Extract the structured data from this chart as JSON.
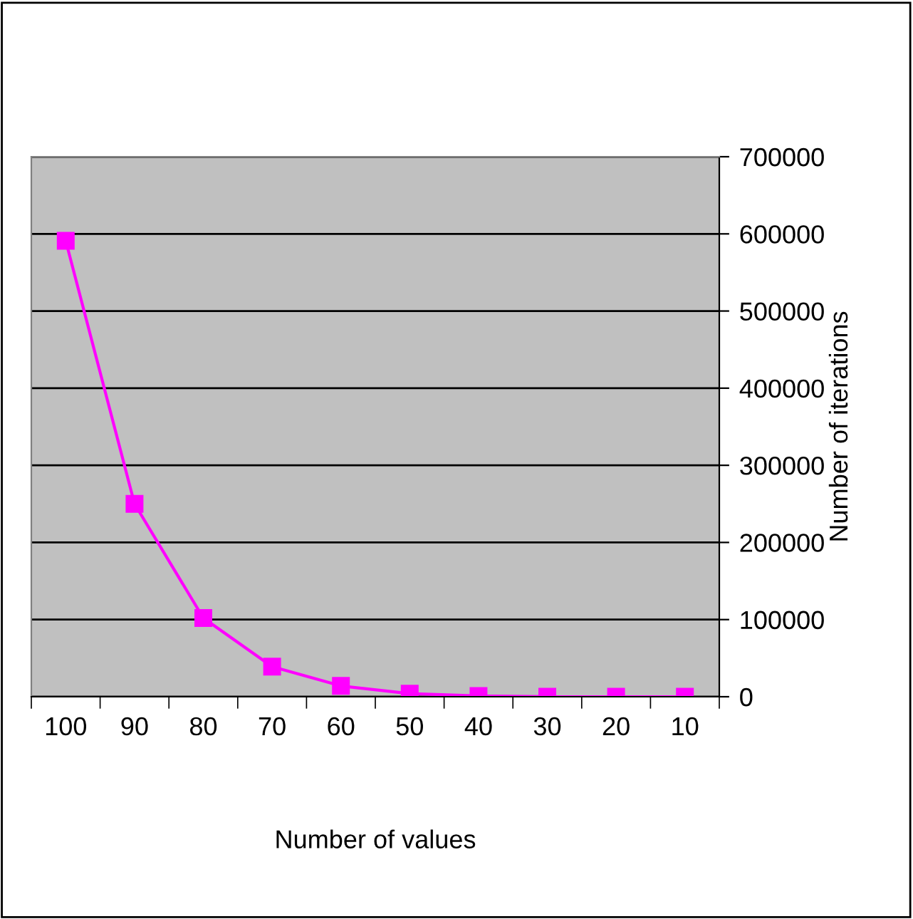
{
  "chart_data": {
    "type": "line",
    "xlabel": "Number of values",
    "y2label": "Number of iterations",
    "categories": [
      "100",
      "90",
      "80",
      "70",
      "60",
      "50",
      "40",
      "30",
      "20",
      "10"
    ],
    "series": [
      {
        "color": "#ff00ff",
        "axis": "y2",
        "values": [
          591000,
          250000,
          102000,
          39000,
          14000,
          4000,
          1000,
          0,
          0,
          0
        ]
      }
    ],
    "y2lim": [
      0,
      700000
    ],
    "y2ticks": [
      0,
      100000,
      200000,
      300000,
      400000,
      500000,
      600000,
      700000
    ],
    "grid": "y",
    "marker": "square",
    "line_style": "solid",
    "legend": false
  }
}
